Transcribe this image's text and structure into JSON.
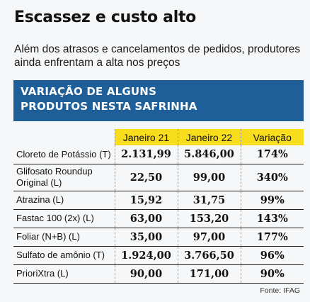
{
  "title": "Escassez e custo alto",
  "subtitle": "Além dos atrasos e cancelamentos de pedidos, produtores ainda enfrentam a alta nos preços",
  "banner": {
    "line1": "VARIAÇÃO DE ALGUNS",
    "line2": "PRODUTOS NESTA SAFRINHA",
    "color": "#1e5f9a"
  },
  "table": {
    "header_color": "#f7dd1c",
    "headers": [
      "",
      "Janeiro 21",
      "Janeiro 22",
      "Variação"
    ],
    "rows": [
      {
        "product": "Cloreto de Potássio (T)",
        "jan21": "2.131,99",
        "jan22": "5.846,00",
        "variation": "174%"
      },
      {
        "product": "Glifosato Roundup Original (L)",
        "jan21": "22,50",
        "jan22": "99,00",
        "variation": "340%"
      },
      {
        "product": "Atrazina (L)",
        "jan21": "15,92",
        "jan22": "31,75",
        "variation": "99%"
      },
      {
        "product": "Fastac 100 (2x) (L)",
        "jan21": "63,00",
        "jan22": "153,20",
        "variation": "143%"
      },
      {
        "product": "Foliar (N+B) (L)",
        "jan21": "35,00",
        "jan22": "97,00",
        "variation": "177%"
      },
      {
        "product": "Sulfato de amônio (T)",
        "jan21": "1.924,00",
        "jan22": "3.766,50",
        "variation": "96%"
      },
      {
        "product": "PrioriXtra (L)",
        "jan21": "90,00",
        "jan22": "171,00",
        "variation": "90%"
      }
    ]
  },
  "source": "Fonte: IFAG"
}
